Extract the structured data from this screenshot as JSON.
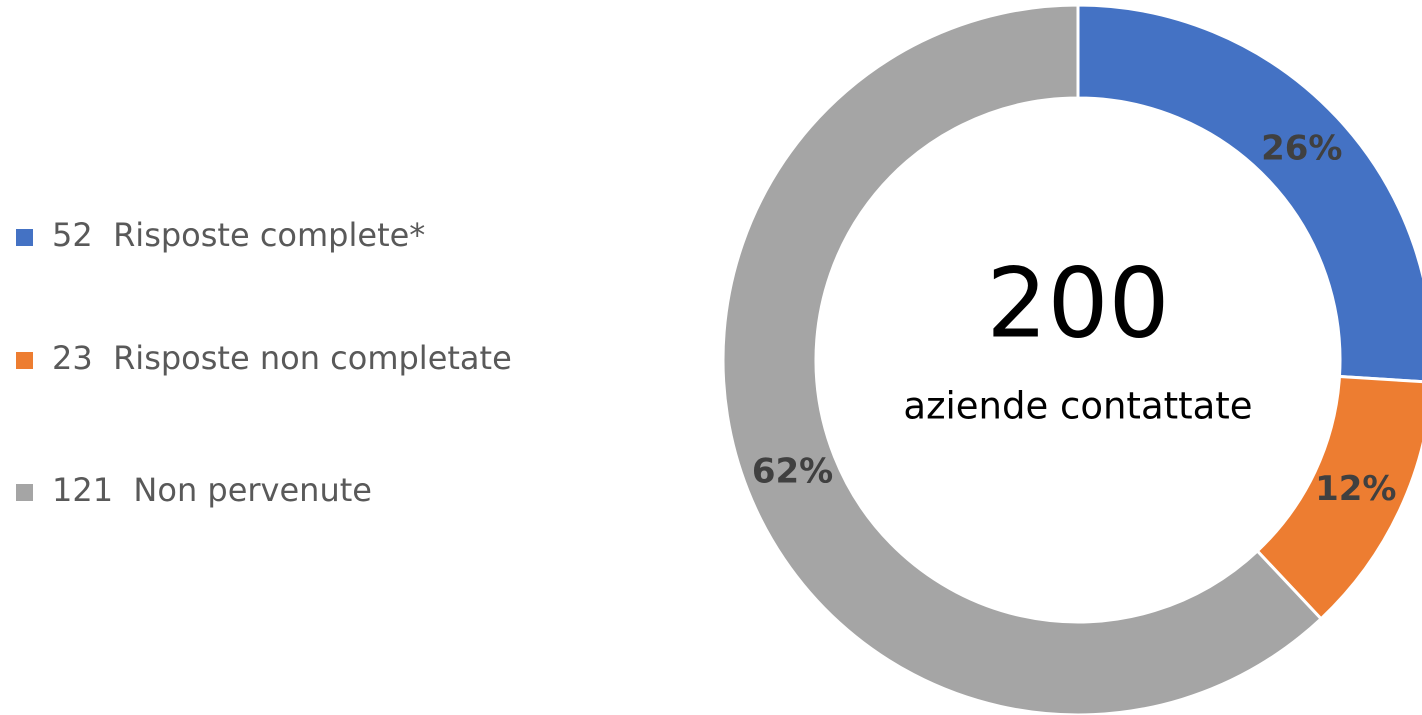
{
  "chart_data": {
    "type": "donut",
    "center_value": "200",
    "center_label": "aziende contattate",
    "series": [
      {
        "name": "52  Risposte complete*",
        "color": "#4472c4",
        "value": 26,
        "value_label": "26%"
      },
      {
        "name": "23  Risposte non completate",
        "color": "#ed7d31",
        "value": 12,
        "value_label": "12%"
      },
      {
        "name": "121  Non pervenute",
        "color": "#a5a5a5",
        "value": 62,
        "value_label": "62%"
      }
    ]
  }
}
